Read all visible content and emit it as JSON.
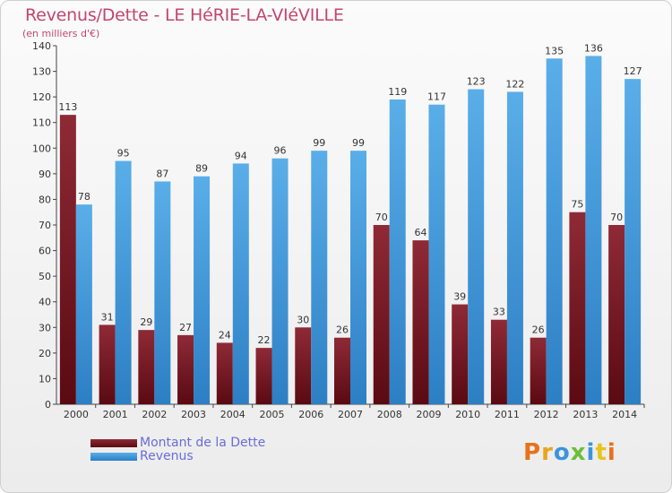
{
  "chart_data": {
    "type": "bar",
    "title": "Revenus/Dette - LE HéRIE-LA-VIéVILLE",
    "subtitle": "(en milliers d'€)",
    "categories": [
      "2000",
      "2001",
      "2002",
      "2003",
      "2004",
      "2005",
      "2006",
      "2007",
      "2008",
      "2009",
      "2010",
      "2011",
      "2012",
      "2013",
      "2014"
    ],
    "series": [
      {
        "name": "Montant de la Dette",
        "color": "#7a1a26",
        "values": [
          113,
          31,
          29,
          27,
          24,
          22,
          30,
          26,
          70,
          64,
          39,
          33,
          26,
          75,
          70
        ]
      },
      {
        "name": "Revenus",
        "color": "#3d94da",
        "values": [
          78,
          95,
          87,
          89,
          94,
          96,
          99,
          99,
          119,
          117,
          123,
          122,
          135,
          136,
          127
        ]
      }
    ],
    "ylim": [
      0,
      140
    ],
    "yticks": [
      0,
      10,
      20,
      30,
      40,
      50,
      60,
      70,
      80,
      90,
      100,
      110,
      120,
      130,
      140
    ],
    "grid": false,
    "legend_position": "bottom-left"
  },
  "logo": {
    "text": "Proxiti"
  }
}
